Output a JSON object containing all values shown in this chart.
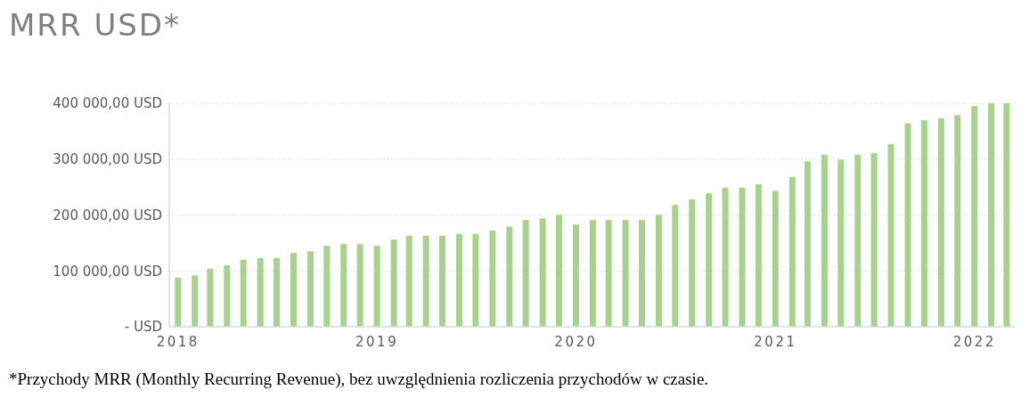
{
  "chart_data": {
    "type": "bar",
    "title": "MRR USD*",
    "x": [
      "2018-01",
      "2018-02",
      "2018-03",
      "2018-04",
      "2018-05",
      "2018-06",
      "2018-07",
      "2018-08",
      "2018-09",
      "2018-10",
      "2018-11",
      "2018-12",
      "2019-01",
      "2019-02",
      "2019-03",
      "2019-04",
      "2019-05",
      "2019-06",
      "2019-07",
      "2019-08",
      "2019-09",
      "2019-10",
      "2019-11",
      "2019-12",
      "2020-01",
      "2020-02",
      "2020-03",
      "2020-04",
      "2020-05",
      "2020-06",
      "2020-07",
      "2020-08",
      "2020-09",
      "2020-10",
      "2020-11",
      "2020-12",
      "2021-01",
      "2021-02",
      "2021-03",
      "2021-04",
      "2021-05",
      "2021-06",
      "2021-07",
      "2021-08",
      "2021-09",
      "2021-10",
      "2021-11",
      "2021-12",
      "2022-01",
      "2022-02",
      "2022-03"
    ],
    "values": [
      88000,
      92000,
      104000,
      110000,
      120000,
      123000,
      123000,
      132000,
      135000,
      145000,
      148000,
      148000,
      145000,
      156000,
      163000,
      163000,
      163000,
      166000,
      166000,
      172000,
      179000,
      191000,
      194000,
      200000,
      183000,
      191000,
      191000,
      191000,
      191000,
      200000,
      218000,
      228000,
      239000,
      249000,
      249000,
      255000,
      243000,
      268000,
      296000,
      308000,
      299000,
      308000,
      311000,
      327000,
      364000,
      370000,
      373000,
      379000,
      395000,
      400000,
      400000
    ],
    "color": "#a9d18e",
    "xlim": [
      "2017-12-16",
      "2022-03-16"
    ],
    "xticks": [
      "2018",
      "2019",
      "2020",
      "2021",
      "2022"
    ],
    "ylim": [
      0,
      400000
    ],
    "yticks": [
      {
        "value": 0,
        "label": "-   USD"
      },
      {
        "value": 100000,
        "label": "100 000,00 USD"
      },
      {
        "value": 200000,
        "label": "200 000,00 USD"
      },
      {
        "value": 300000,
        "label": "300 000,00 USD"
      },
      {
        "value": 400000,
        "label": "400 000,00 USD"
      }
    ],
    "grid": "y",
    "annotations": [
      "*Przychody MRR (Monthly Recurring Revenue), bez uwzględnienia rozliczenia przychodów w czasie."
    ]
  }
}
